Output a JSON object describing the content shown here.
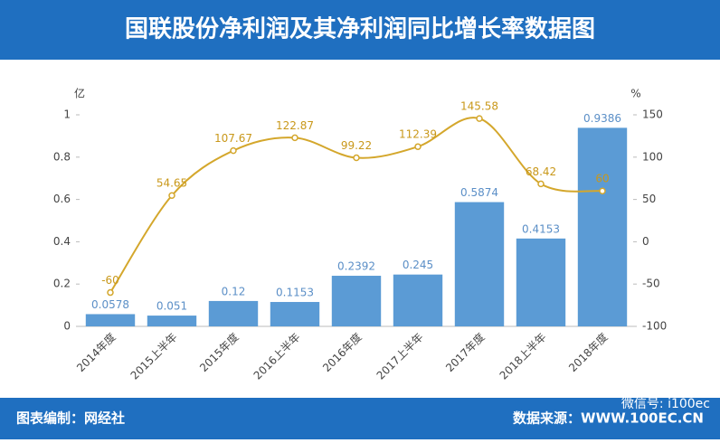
{
  "header": {
    "title": "国联股份净利润及其净利润同比增长率数据图"
  },
  "chart_data": {
    "type": "bar",
    "y_label": "亿",
    "y2_label": "%",
    "categories": [
      "2014年度",
      "2015上半年",
      "2015年度",
      "2016上半年",
      "2016年度",
      "2017上半年",
      "2017年度",
      "2018上半年",
      "2018年度"
    ],
    "series": [
      {
        "color": "#5b9bd5",
        "values": [
          0.0578,
          0.051,
          0.12,
          0.1153,
          0.2392,
          0.245,
          0.5874,
          0.4153,
          0.9386
        ]
      },
      {
        "type": "line",
        "axis": "y2",
        "color": "#d4a72c",
        "values": [
          -60,
          54.65,
          107.67,
          122.87,
          99.22,
          112.39,
          145.58,
          68.42,
          60
        ]
      }
    ],
    "ylim": [
      0,
      1
    ],
    "yticks": [
      0,
      0.2,
      0.4,
      0.6,
      0.8,
      1
    ],
    "y2lim": [
      -100,
      150
    ],
    "y2ticks": [
      -100,
      -50,
      0,
      50,
      100,
      150
    ]
  },
  "footer": {
    "left": "图表编制：网经社",
    "source": "数据来源：WWW.100EC.CN",
    "wechat": "微信号: i100ec"
  }
}
